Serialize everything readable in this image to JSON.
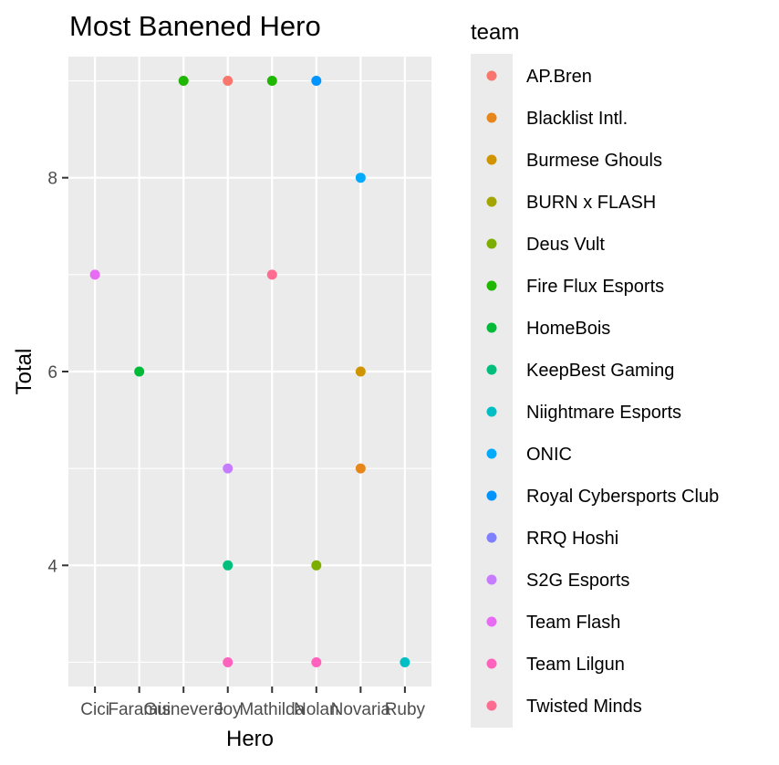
{
  "chart_data": {
    "type": "scatter",
    "title": "Most Banened Hero",
    "xlabel": "Hero",
    "ylabel": "Total",
    "categories": [
      "Cici",
      "Faramis",
      "Guinevere",
      "Joy",
      "Mathilda",
      "Nolan",
      "Novaria",
      "Ruby"
    ],
    "ylim": [
      2.75,
      9.25
    ],
    "yticks": [
      4,
      6,
      8
    ],
    "grid": true,
    "legend_title": "team",
    "legend_position": "right",
    "legend": [
      {
        "name": "AP.Bren",
        "color": "#F8766D"
      },
      {
        "name": "Blacklist Intl.",
        "color": "#E7861B"
      },
      {
        "name": "Burmese Ghouls",
        "color": "#CF9400"
      },
      {
        "name": "BURN x FLASH",
        "color": "#A3A500"
      },
      {
        "name": "Deus Vult",
        "color": "#7CAE00"
      },
      {
        "name": "Fire Flux Esports",
        "color": "#1FB700"
      },
      {
        "name": "HomeBois",
        "color": "#00BA38"
      },
      {
        "name": "KeepBest Gaming",
        "color": "#00BF7D"
      },
      {
        "name": "Niightmare Esports",
        "color": "#00BFC4"
      },
      {
        "name": "ONIC",
        "color": "#00ABFD"
      },
      {
        "name": "Royal Cybersports Club",
        "color": "#0094FF"
      },
      {
        "name": "RRQ Hoshi",
        "color": "#7F80FF"
      },
      {
        "name": "S2G Esports",
        "color": "#C77CFF"
      },
      {
        "name": "Team Flash",
        "color": "#E76BF3"
      },
      {
        "name": "Team Lilgun",
        "color": "#FF62BC"
      },
      {
        "name": "Twisted Minds",
        "color": "#FF6C91"
      }
    ],
    "points": [
      {
        "x": "Cici",
        "y": 7,
        "team": "Team Flash"
      },
      {
        "x": "Faramis",
        "y": 6,
        "team": "HomeBois"
      },
      {
        "x": "Guinevere",
        "y": 9,
        "team": "Fire Flux Esports"
      },
      {
        "x": "Joy",
        "y": 9,
        "team": "AP.Bren"
      },
      {
        "x": "Joy",
        "y": 5,
        "team": "S2G Esports"
      },
      {
        "x": "Joy",
        "y": 4,
        "team": "KeepBest Gaming"
      },
      {
        "x": "Joy",
        "y": 3,
        "team": "Team Lilgun"
      },
      {
        "x": "Mathilda",
        "y": 9,
        "team": "Fire Flux Esports"
      },
      {
        "x": "Mathilda",
        "y": 7,
        "team": "Twisted Minds"
      },
      {
        "x": "Nolan",
        "y": 9,
        "team": "Royal Cybersports Club"
      },
      {
        "x": "Nolan",
        "y": 4,
        "team": "Deus Vult"
      },
      {
        "x": "Nolan",
        "y": 3,
        "team": "Team Lilgun"
      },
      {
        "x": "Novaria",
        "y": 8,
        "team": "ONIC"
      },
      {
        "x": "Novaria",
        "y": 6,
        "team": "Burmese Ghouls"
      },
      {
        "x": "Novaria",
        "y": 5,
        "team": "Blacklist Intl."
      },
      {
        "x": "Ruby",
        "y": 3,
        "team": "Niightmare Esports"
      }
    ]
  }
}
